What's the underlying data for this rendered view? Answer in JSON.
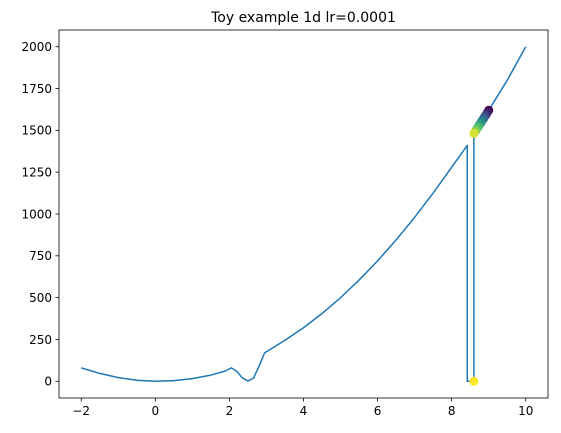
{
  "chart_data": {
    "type": "line",
    "title": "Toy example 1d lr=0.0001",
    "xlabel": "",
    "ylabel": "",
    "xlim": [
      -2.6,
      10.6
    ],
    "ylim": [
      -100,
      2100
    ],
    "x_ticks": [
      -2,
      0,
      2,
      4,
      6,
      8,
      10
    ],
    "x_tick_labels": [
      "−2",
      "0",
      "2",
      "4",
      "6",
      "8",
      "10"
    ],
    "y_ticks": [
      0,
      250,
      500,
      750,
      1000,
      1250,
      1500,
      1750,
      2000
    ],
    "y_tick_labels": [
      "0",
      "250",
      "500",
      "750",
      "1000",
      "1250",
      "1500",
      "1750",
      "2000"
    ],
    "grid": false,
    "series": [
      {
        "color": "#1f77b4",
        "points": [
          [
            -2.0,
            80
          ],
          [
            -1.5,
            47
          ],
          [
            -1.0,
            22
          ],
          [
            -0.5,
            6
          ],
          [
            0.0,
            0
          ],
          [
            0.5,
            4
          ],
          [
            1.0,
            16
          ],
          [
            1.5,
            37
          ],
          [
            1.9,
            62
          ],
          [
            2.05,
            80
          ],
          [
            2.2,
            60
          ],
          [
            2.35,
            20
          ],
          [
            2.5,
            2
          ],
          [
            2.65,
            18
          ],
          [
            2.8,
            90
          ],
          [
            2.95,
            170
          ],
          [
            3.5,
            245
          ],
          [
            4.0,
            320
          ],
          [
            4.5,
            405
          ],
          [
            5.0,
            500
          ],
          [
            5.5,
            605
          ],
          [
            6.0,
            720
          ],
          [
            6.5,
            845
          ],
          [
            7.0,
            980
          ],
          [
            7.5,
            1125
          ],
          [
            8.0,
            1280
          ],
          [
            8.42,
            1410
          ],
          [
            8.42,
            0
          ],
          [
            8.6,
            0
          ],
          [
            8.6,
            1480
          ],
          [
            9.0,
            1620
          ],
          [
            9.5,
            1800
          ],
          [
            10.0,
            2000
          ]
        ]
      }
    ],
    "scatter": {
      "colormap": "viridis",
      "points": [
        [
          9.0,
          1620,
          0.0
        ],
        [
          8.96,
          1606,
          0.08
        ],
        [
          8.93,
          1594,
          0.16
        ],
        [
          8.89,
          1582,
          0.24
        ],
        [
          8.86,
          1570,
          0.32
        ],
        [
          8.82,
          1558,
          0.4
        ],
        [
          8.79,
          1546,
          0.48
        ],
        [
          8.75,
          1534,
          0.56
        ],
        [
          8.72,
          1522,
          0.64
        ],
        [
          8.68,
          1510,
          0.72
        ],
        [
          8.65,
          1498,
          0.8
        ],
        [
          8.61,
          1486,
          0.88
        ],
        [
          8.6,
          1482,
          0.94
        ],
        [
          8.6,
          0,
          1.0
        ]
      ]
    }
  }
}
